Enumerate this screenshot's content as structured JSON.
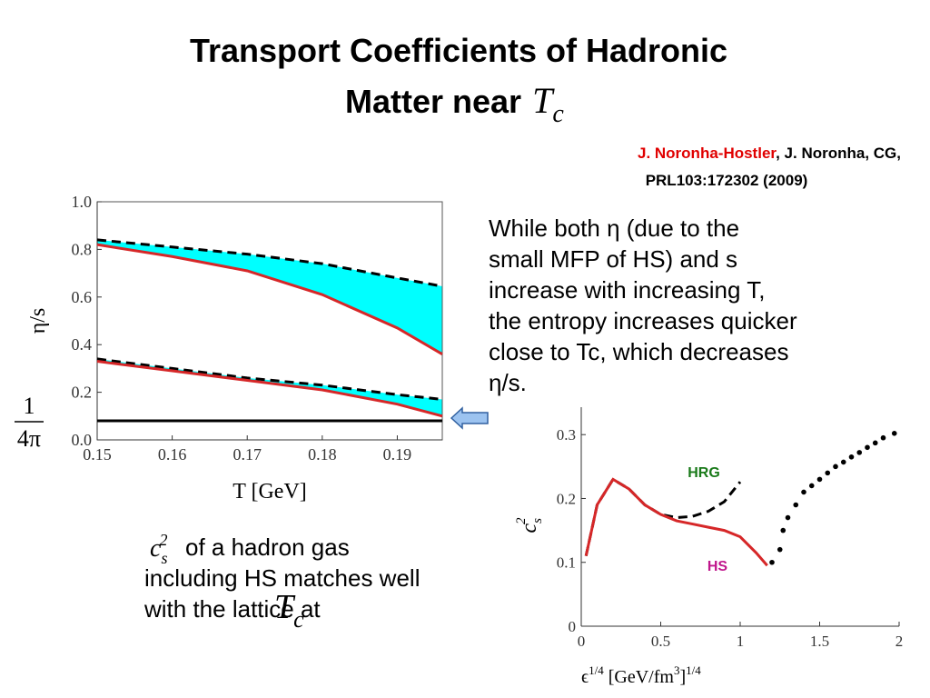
{
  "slide": {
    "title": {
      "line1": "Transport Coefficients of Hadronic",
      "line2": "Matter near",
      "math_base": "T",
      "math_sub": "c"
    },
    "citation": {
      "author_highlight": "J. Noronha-Hostler",
      "authors_rest": ", J. Noronha, CG,",
      "reference": "PRL103:172302 (2009)"
    },
    "paragraph": [
      "While both η (due to the",
      "small MFP of HS) and s",
      "increase with increasing T,",
      "the entropy increases quicker",
      "close to Tc, which decreases",
      "η/s."
    ],
    "caption": {
      "math_base": "c",
      "math_sub": "s",
      "math_sup": "2",
      "lines": [
        " of a hadron gas",
        "including HS matches well",
        "with the lattice at"
      ],
      "end_base": "T",
      "end_sub": "c"
    }
  },
  "chart_data": [
    {
      "type": "line",
      "x_label": "T [GeV]",
      "y_label": "η/s",
      "x": [
        0.15,
        0.16,
        0.17,
        0.18,
        0.19,
        0.196
      ],
      "xlim": [
        0.15,
        0.196
      ],
      "ylim": [
        0,
        1
      ],
      "xticks": [
        0.15,
        0.16,
        0.17,
        0.18,
        0.19
      ],
      "yticks": [
        {
          "value": 0,
          "label": "0.0"
        },
        0.2,
        0.4,
        0.6,
        0.8,
        {
          "value": 1,
          "label": "1.0"
        }
      ],
      "fill_color": "#00ffff",
      "series": [
        {
          "color": "#000000",
          "dashed": true,
          "values": [
            0.84,
            0.81,
            0.78,
            0.74,
            0.68,
            0.645
          ]
        },
        {
          "color": "#d62728",
          "dashed": false,
          "values": [
            0.82,
            0.77,
            0.71,
            0.61,
            0.47,
            0.36
          ]
        },
        {
          "color": "#000000",
          "dashed": true,
          "values": [
            0.34,
            0.3,
            0.26,
            0.23,
            0.19,
            0.17
          ]
        },
        {
          "color": "#d62728",
          "dashed": false,
          "values": [
            0.33,
            0.29,
            0.25,
            0.21,
            0.15,
            0.1
          ]
        }
      ],
      "reference_line": {
        "value": 0.08,
        "color": "#000000",
        "label_numerator": "1",
        "label_denominator": "4π"
      }
    },
    {
      "type": "line",
      "x_label": {
        "base": "ϵ",
        "exp": "1/4",
        "unit": " [GeV/fm",
        "unit_exp": "3",
        "close": "]",
        "close_exp": "1/4"
      },
      "y_label": {
        "base": "c",
        "sub": "s",
        "sup": "2"
      },
      "xlim": [
        0,
        2
      ],
      "ylim": [
        0,
        0.343
      ],
      "xticks": [
        0,
        0.5,
        1,
        1.5,
        2
      ],
      "yticks": [
        0,
        0.1,
        0.2,
        0.3
      ],
      "series": [
        {
          "name": "HRG",
          "name_color": "#1a7a1a",
          "color": "#000000",
          "dashed": true,
          "kind": "line",
          "x": [
            0.03,
            0.1,
            0.2,
            0.3,
            0.4,
            0.5,
            0.6,
            0.7,
            0.8,
            0.9,
            1.0
          ],
          "values": [
            0.11,
            0.19,
            0.23,
            0.215,
            0.19,
            0.175,
            0.17,
            0.172,
            0.18,
            0.195,
            0.226
          ]
        },
        {
          "name": "HS",
          "name_color": "#c0168c",
          "color": "#d62728",
          "dashed": false,
          "kind": "line",
          "x": [
            0.03,
            0.1,
            0.2,
            0.3,
            0.4,
            0.5,
            0.6,
            0.7,
            0.8,
            0.9,
            1.0,
            1.1,
            1.17
          ],
          "values": [
            0.11,
            0.19,
            0.23,
            0.215,
            0.19,
            0.175,
            0.165,
            0.16,
            0.155,
            0.15,
            0.14,
            0.115,
            0.095
          ]
        },
        {
          "color": "#000000",
          "kind": "scatter",
          "x": [
            1.2,
            1.25,
            1.27,
            1.3,
            1.35,
            1.4,
            1.45,
            1.5,
            1.55,
            1.6,
            1.65,
            1.7,
            1.75,
            1.8,
            1.85,
            1.9,
            1.97
          ],
          "values": [
            0.1,
            0.12,
            0.15,
            0.17,
            0.19,
            0.21,
            0.22,
            0.23,
            0.24,
            0.25,
            0.257,
            0.265,
            0.272,
            0.28,
            0.287,
            0.295,
            0.302
          ]
        }
      ]
    }
  ]
}
